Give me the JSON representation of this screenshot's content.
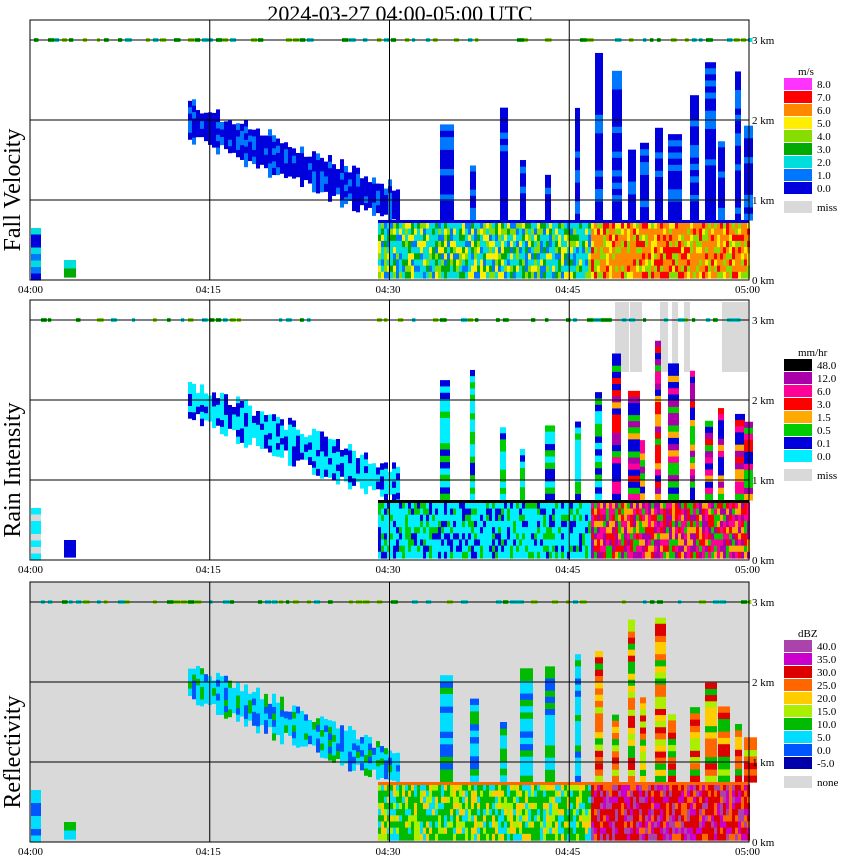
{
  "title": "2024-03-27  04:00-05:00 UTC",
  "x_ticks": [
    "04:00",
    "04:15",
    "04:30",
    "04:45",
    "05:00"
  ],
  "y_ticks": [
    "0 km",
    "1 km",
    "2 km",
    "3 km"
  ],
  "colors": {
    "missing": "#d9d9d9"
  },
  "chart_data": [
    {
      "type": "heatmap",
      "title": "Fall Velocity",
      "ylabel": "Fall Velocity",
      "x_range": [
        "04:00",
        "05:00"
      ],
      "y_range_km": [
        0,
        3.2
      ],
      "legend": {
        "unit": "m/s",
        "entries": [
          {
            "label": "8.0",
            "color": "#ff33ff"
          },
          {
            "label": "7.0",
            "color": "#ff0000"
          },
          {
            "label": "6.0",
            "color": "#ff8800"
          },
          {
            "label": "5.0",
            "color": "#ffee00"
          },
          {
            "label": "4.0",
            "color": "#88dd00"
          },
          {
            "label": "3.0",
            "color": "#00aa00"
          },
          {
            "label": "2.0",
            "color": "#00dddd"
          },
          {
            "label": "1.0",
            "color": "#0077ff"
          },
          {
            "label": "0.0",
            "color": "#0000dd"
          },
          {
            "label": "miss",
            "color": "#d9d9d9"
          }
        ]
      }
    },
    {
      "type": "heatmap",
      "title": "Rain Intensity",
      "ylabel": "Rain Intensity",
      "x_range": [
        "04:00",
        "05:00"
      ],
      "y_range_km": [
        0,
        3.2
      ],
      "legend": {
        "unit": "mm/hr",
        "entries": [
          {
            "label": "48.0",
            "color": "#000000"
          },
          {
            "label": "12.0",
            "color": "#aa00aa"
          },
          {
            "label": "6.0",
            "color": "#ff0099"
          },
          {
            "label": "3.0",
            "color": "#ff0000"
          },
          {
            "label": "1.5",
            "color": "#ffaa00"
          },
          {
            "label": "0.5",
            "color": "#00cc00"
          },
          {
            "label": "0.1",
            "color": "#0000dd"
          },
          {
            "label": "0.0",
            "color": "#00eeff"
          },
          {
            "label": "miss",
            "color": "#d9d9d9"
          }
        ]
      }
    },
    {
      "type": "heatmap",
      "title": "Reflectivity",
      "ylabel": "Reflectivity",
      "x_range": [
        "04:00",
        "05:00"
      ],
      "y_range_km": [
        0,
        3.2
      ],
      "legend": {
        "unit": "dBZ",
        "entries": [
          {
            "label": "40.0",
            "color": "#aa44aa"
          },
          {
            "label": "35.0",
            "color": "#cc00cc"
          },
          {
            "label": "30.0",
            "color": "#dd0000"
          },
          {
            "label": "25.0",
            "color": "#ff6600"
          },
          {
            "label": "20.0",
            "color": "#ffcc00"
          },
          {
            "label": "15.0",
            "color": "#aaee00"
          },
          {
            "label": "10.0",
            "color": "#00bb00"
          },
          {
            "label": "5.0",
            "color": "#00ddff"
          },
          {
            "label": "0.0",
            "color": "#0055ff"
          },
          {
            "label": "-5.0",
            "color": "#0000aa"
          },
          {
            "label": "none",
            "color": "#d9d9d9"
          }
        ]
      }
    }
  ]
}
